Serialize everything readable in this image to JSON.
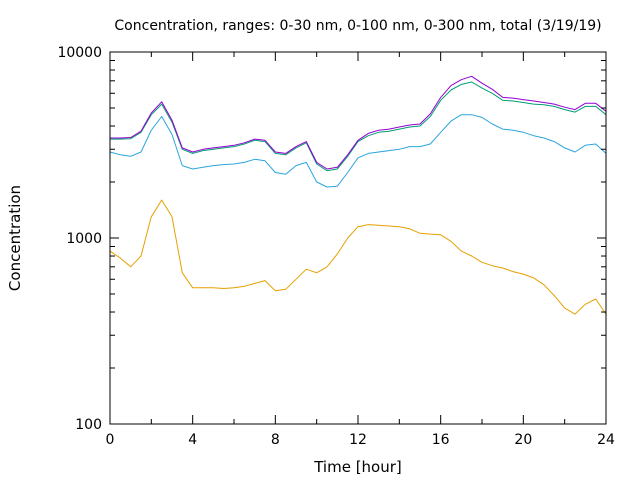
{
  "chart_data": {
    "type": "line",
    "title": "Concentration, ranges: 0-30 nm, 0-100 nm, 0-300 nm, total (3/19/19)",
    "xlabel": "Time [hour]",
    "ylabel": "Concentration",
    "xlim": [
      0,
      24
    ],
    "ylim": [
      100,
      10000
    ],
    "yscale": "log",
    "grid": false,
    "legend": "none",
    "x_ticks": [
      {
        "value": 0,
        "label": "0"
      },
      {
        "value": 4,
        "label": "4"
      },
      {
        "value": 8,
        "label": "8"
      },
      {
        "value": 12,
        "label": "12"
      },
      {
        "value": 16,
        "label": "16"
      },
      {
        "value": 20,
        "label": "20"
      },
      {
        "value": 24,
        "label": "24"
      }
    ],
    "x_minor_ticks": [
      2,
      6,
      10,
      14,
      18,
      22
    ],
    "y_ticks": [
      {
        "value": 100,
        "label": "100"
      },
      {
        "value": 1000,
        "label": "1000"
      },
      {
        "value": 10000,
        "label": "10000"
      }
    ],
    "x": [
      0,
      0.5,
      1,
      1.5,
      2,
      2.5,
      3,
      3.5,
      4,
      4.5,
      5,
      5.5,
      6,
      6.5,
      7,
      7.5,
      8,
      8.5,
      9,
      9.5,
      10,
      10.5,
      11,
      11.5,
      12,
      12.5,
      13,
      13.5,
      14,
      14.5,
      15,
      15.5,
      16,
      16.5,
      17,
      17.5,
      18,
      18.5,
      19,
      19.5,
      20,
      20.5,
      21,
      21.5,
      22,
      22.5,
      23,
      23.5,
      24
    ],
    "series": [
      {
        "color": "#e6a000",
        "values": [
          850,
          780,
          700,
          800,
          1300,
          1600,
          1300,
          650,
          540,
          540,
          540,
          535,
          540,
          550,
          570,
          590,
          520,
          530,
          600,
          680,
          650,
          700,
          820,
          1000,
          1150,
          1180,
          1170,
          1160,
          1150,
          1120,
          1060,
          1050,
          1040,
          960,
          850,
          800,
          740,
          710,
          690,
          660,
          640,
          610,
          560,
          490,
          420,
          390,
          440,
          470,
          390
        ]
      },
      {
        "color": "#2ba5df",
        "values": [
          2900,
          2800,
          2750,
          2900,
          3800,
          4500,
          3600,
          2450,
          2350,
          2400,
          2450,
          2480,
          2500,
          2550,
          2650,
          2600,
          2250,
          2200,
          2450,
          2550,
          2000,
          1880,
          1900,
          2250,
          2700,
          2850,
          2900,
          2950,
          3000,
          3100,
          3100,
          3200,
          3700,
          4250,
          4600,
          4600,
          4450,
          4100,
          3850,
          3800,
          3700,
          3550,
          3450,
          3300,
          3050,
          2900,
          3150,
          3200,
          2850
        ]
      },
      {
        "color": "#009e73",
        "values": [
          3400,
          3400,
          3420,
          3700,
          4600,
          5250,
          4200,
          3000,
          2850,
          2950,
          3000,
          3050,
          3100,
          3200,
          3350,
          3300,
          2850,
          2800,
          3050,
          3250,
          2500,
          2300,
          2350,
          2750,
          3300,
          3550,
          3700,
          3750,
          3850,
          3950,
          4000,
          4500,
          5500,
          6250,
          6700,
          6900,
          6400,
          6000,
          5500,
          5450,
          5350,
          5250,
          5200,
          5100,
          4900,
          4750,
          5100,
          5100,
          4600
        ]
      },
      {
        "color": "#9400d3",
        "values": [
          3450,
          3450,
          3470,
          3750,
          4700,
          5400,
          4300,
          3050,
          2900,
          3000,
          3050,
          3100,
          3150,
          3250,
          3400,
          3350,
          2900,
          2850,
          3100,
          3300,
          2550,
          2350,
          2400,
          2800,
          3350,
          3650,
          3800,
          3850,
          3950,
          4050,
          4100,
          4650,
          5700,
          6600,
          7100,
          7400,
          6800,
          6300,
          5700,
          5650,
          5550,
          5450,
          5350,
          5250,
          5050,
          4900,
          5300,
          5300,
          4800
        ]
      }
    ]
  }
}
